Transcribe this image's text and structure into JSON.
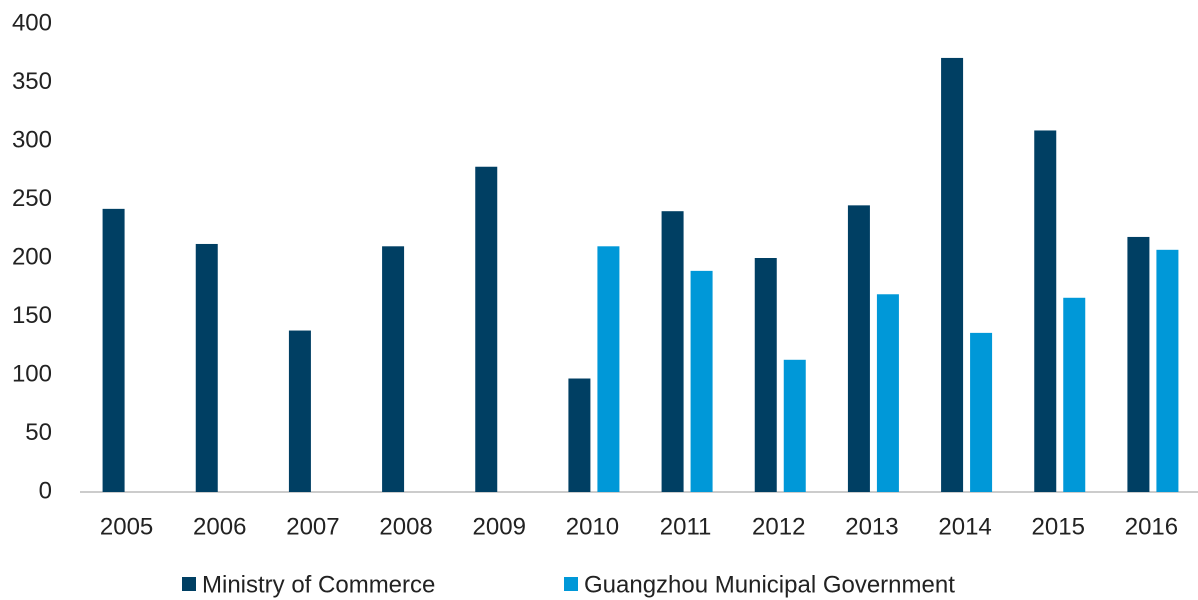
{
  "chart_data": {
    "type": "bar",
    "categories": [
      "2005",
      "2006",
      "2007",
      "2008",
      "2009",
      "2010",
      "2011",
      "2012",
      "2013",
      "2014",
      "2015",
      "2016"
    ],
    "series": [
      {
        "name": "Ministry of Commerce",
        "color": "#003f63",
        "values": [
          242,
          212,
          138,
          210,
          278,
          97,
          240,
          200,
          245,
          371,
          309,
          218
        ]
      },
      {
        "name": "Guangzhou Municipal Government",
        "color": "#0098d8",
        "values": [
          null,
          null,
          null,
          null,
          null,
          210,
          189,
          113,
          169,
          136,
          166,
          207
        ]
      }
    ],
    "ylim": [
      0,
      400
    ],
    "yticks": [
      0,
      50,
      100,
      150,
      200,
      250,
      300,
      350,
      400
    ],
    "grid": false,
    "legend": "bottom"
  }
}
